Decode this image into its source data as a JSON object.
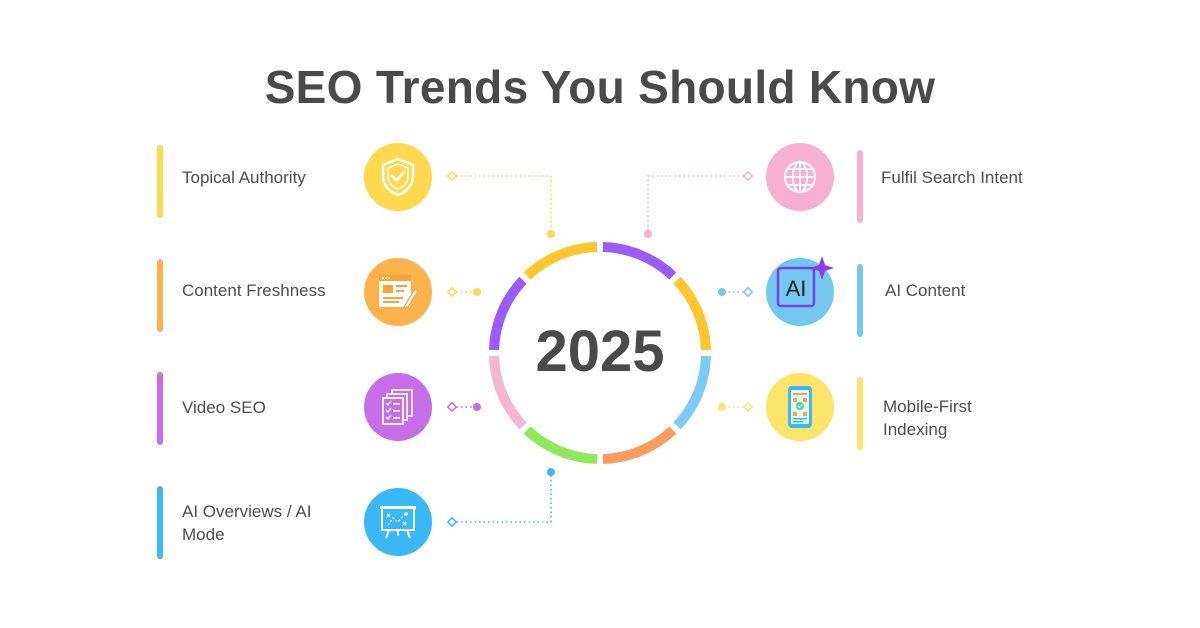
{
  "title": "SEO Trends You Should Know",
  "center_label": "2025",
  "left_items": [
    {
      "label": "Topical Authority",
      "color": "#fcd94f",
      "icon": "shield-check-icon"
    },
    {
      "label": "Content Freshness",
      "color": "#fbb24a",
      "icon": "document-edit-icon"
    },
    {
      "label": "Video SEO",
      "color": "#c56ee8",
      "icon": "checklist-icon"
    },
    {
      "label": "AI Overviews / AI Mode",
      "color": "#3ab8f6",
      "icon": "presentation-board-icon"
    }
  ],
  "right_items": [
    {
      "label": "Fulfil Search Intent",
      "color": "#f5b1cf",
      "icon": "globe-icon"
    },
    {
      "label": "AI Content",
      "color": "#74c8ef",
      "icon": "ai-sparkle-icon",
      "icon_text": "AI"
    },
    {
      "label": "Mobile-First Indexing",
      "color": "#fce46a",
      "icon": "mobile-phone-icon"
    }
  ],
  "ring_segment_colors": [
    "#9b5cf5",
    "#fdc62e",
    "#7fcaf4",
    "#fb9c5c",
    "#8fe85c",
    "#f4b7d2",
    "#9b5cf5",
    "#fdc62e"
  ]
}
